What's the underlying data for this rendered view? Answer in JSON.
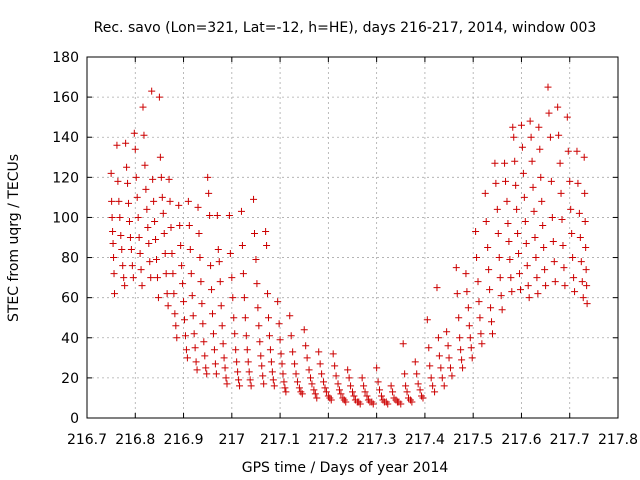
{
  "chart_data": {
    "type": "scatter",
    "title": "Rec. savo (Lon=321, Lat=-12, h=HE), days 216-217, 2014, window 003",
    "xlabel": "GPS time / Days of year 2014",
    "ylabel": "STEC from uqrg / TECUs",
    "xlim": [
      216.7,
      217.8
    ],
    "ylim": [
      0,
      180
    ],
    "xticks": [
      "216.7",
      "216.8",
      "216.9",
      "217",
      "217.1",
      "217.2",
      "217.3",
      "217.4",
      "217.5",
      "217.6",
      "217.7",
      "217.8"
    ],
    "yticks": [
      "0",
      "20",
      "40",
      "60",
      "80",
      "100",
      "120",
      "140",
      "160",
      "180"
    ],
    "grid": true,
    "marker": "+",
    "color": "#cc0000",
    "points": [
      [
        216.75,
        122
      ],
      [
        216.751,
        108
      ],
      [
        216.752,
        100
      ],
      [
        216.753,
        93
      ],
      [
        216.754,
        87
      ],
      [
        216.755,
        80
      ],
      [
        216.756,
        72
      ],
      [
        216.757,
        62
      ],
      [
        216.762,
        136
      ],
      [
        216.764,
        118
      ],
      [
        216.766,
        108
      ],
      [
        216.768,
        100
      ],
      [
        216.77,
        91
      ],
      [
        216.772,
        84
      ],
      [
        216.774,
        76
      ],
      [
        216.776,
        70
      ],
      [
        216.778,
        66
      ],
      [
        216.78,
        137
      ],
      [
        216.782,
        125
      ],
      [
        216.784,
        117
      ],
      [
        216.786,
        107
      ],
      [
        216.788,
        98
      ],
      [
        216.79,
        90
      ],
      [
        216.792,
        84
      ],
      [
        216.794,
        76
      ],
      [
        216.796,
        70
      ],
      [
        216.798,
        142
      ],
      [
        216.8,
        134
      ],
      [
        216.802,
        120
      ],
      [
        216.804,
        110
      ],
      [
        216.806,
        100
      ],
      [
        216.808,
        90
      ],
      [
        216.81,
        82
      ],
      [
        216.812,
        74
      ],
      [
        216.814,
        66
      ],
      [
        216.816,
        155
      ],
      [
        216.818,
        141
      ],
      [
        216.82,
        126
      ],
      [
        216.822,
        114
      ],
      [
        216.824,
        104
      ],
      [
        216.826,
        95
      ],
      [
        216.828,
        87
      ],
      [
        216.83,
        78
      ],
      [
        216.832,
        70
      ],
      [
        216.834,
        163
      ],
      [
        216.836,
        119
      ],
      [
        216.838,
        108
      ],
      [
        216.84,
        98
      ],
      [
        216.842,
        89
      ],
      [
        216.844,
        79
      ],
      [
        216.846,
        70
      ],
      [
        216.848,
        60
      ],
      [
        216.85,
        160
      ],
      [
        216.852,
        130
      ],
      [
        216.854,
        120
      ],
      [
        216.856,
        110
      ],
      [
        216.858,
        102
      ],
      [
        216.86,
        92
      ],
      [
        216.862,
        82
      ],
      [
        216.864,
        72
      ],
      [
        216.866,
        62
      ],
      [
        216.868,
        56
      ],
      [
        216.87,
        119
      ],
      [
        216.872,
        108
      ],
      [
        216.874,
        95
      ],
      [
        216.876,
        82
      ],
      [
        216.878,
        72
      ],
      [
        216.88,
        62
      ],
      [
        216.882,
        52
      ],
      [
        216.884,
        46
      ],
      [
        216.886,
        40
      ],
      [
        216.89,
        106
      ],
      [
        216.892,
        96
      ],
      [
        216.894,
        86
      ],
      [
        216.896,
        76
      ],
      [
        216.898,
        67
      ],
      [
        216.9,
        58
      ],
      [
        216.902,
        49
      ],
      [
        216.904,
        41
      ],
      [
        216.906,
        34
      ],
      [
        216.908,
        30
      ],
      [
        216.91,
        108
      ],
      [
        216.912,
        96
      ],
      [
        216.914,
        84
      ],
      [
        216.916,
        72
      ],
      [
        216.918,
        61
      ],
      [
        216.92,
        51
      ],
      [
        216.922,
        42
      ],
      [
        216.924,
        35
      ],
      [
        216.926,
        28
      ],
      [
        216.928,
        24
      ],
      [
        216.93,
        105
      ],
      [
        216.932,
        92
      ],
      [
        216.934,
        80
      ],
      [
        216.936,
        68
      ],
      [
        216.938,
        57
      ],
      [
        216.94,
        47
      ],
      [
        216.942,
        38
      ],
      [
        216.944,
        31
      ],
      [
        216.946,
        25
      ],
      [
        216.948,
        22
      ],
      [
        216.95,
        120
      ],
      [
        216.952,
        112
      ],
      [
        216.954,
        101
      ],
      [
        216.956,
        76
      ],
      [
        216.958,
        64
      ],
      [
        216.96,
        52
      ],
      [
        216.962,
        42
      ],
      [
        216.964,
        34
      ],
      [
        216.966,
        27
      ],
      [
        216.968,
        22
      ],
      [
        216.97,
        101
      ],
      [
        216.972,
        84
      ],
      [
        216.974,
        78
      ],
      [
        216.976,
        68
      ],
      [
        216.978,
        56
      ],
      [
        216.98,
        46
      ],
      [
        216.982,
        37
      ],
      [
        216.984,
        30
      ],
      [
        216.986,
        25
      ],
      [
        216.988,
        20
      ],
      [
        216.99,
        17
      ],
      [
        216.995,
        101
      ],
      [
        216.997,
        82
      ],
      [
        217.0,
        70
      ],
      [
        217.002,
        60
      ],
      [
        217.004,
        50
      ],
      [
        217.006,
        42
      ],
      [
        217.008,
        34
      ],
      [
        217.01,
        28
      ],
      [
        217.012,
        23
      ],
      [
        217.014,
        19
      ],
      [
        217.016,
        16
      ],
      [
        217.02,
        103
      ],
      [
        217.022,
        86
      ],
      [
        217.024,
        72
      ],
      [
        217.026,
        60
      ],
      [
        217.028,
        50
      ],
      [
        217.03,
        41
      ],
      [
        217.032,
        34
      ],
      [
        217.034,
        28
      ],
      [
        217.036,
        23
      ],
      [
        217.038,
        19
      ],
      [
        217.04,
        16
      ],
      [
        217.045,
        109
      ],
      [
        217.047,
        92
      ],
      [
        217.05,
        79
      ],
      [
        217.052,
        67
      ],
      [
        217.054,
        55
      ],
      [
        217.056,
        46
      ],
      [
        217.058,
        38
      ],
      [
        217.06,
        31
      ],
      [
        217.062,
        26
      ],
      [
        217.064,
        21
      ],
      [
        217.066,
        17
      ],
      [
        217.07,
        93
      ],
      [
        217.072,
        86
      ],
      [
        217.074,
        62
      ],
      [
        217.076,
        50
      ],
      [
        217.078,
        41
      ],
      [
        217.08,
        34
      ],
      [
        217.082,
        28
      ],
      [
        217.084,
        23
      ],
      [
        217.086,
        19
      ],
      [
        217.088,
        16
      ],
      [
        217.095,
        58
      ],
      [
        217.098,
        47
      ],
      [
        217.1,
        39
      ],
      [
        217.102,
        32
      ],
      [
        217.104,
        27
      ],
      [
        217.106,
        22
      ],
      [
        217.108,
        18
      ],
      [
        217.11,
        15
      ],
      [
        217.112,
        13
      ],
      [
        217.12,
        51
      ],
      [
        217.123,
        41
      ],
      [
        217.126,
        33
      ],
      [
        217.13,
        27
      ],
      [
        217.133,
        22
      ],
      [
        217.136,
        18
      ],
      [
        217.14,
        15
      ],
      [
        217.143,
        13
      ],
      [
        217.146,
        12
      ],
      [
        217.15,
        44
      ],
      [
        217.153,
        36
      ],
      [
        217.156,
        30
      ],
      [
        217.16,
        24
      ],
      [
        217.163,
        20
      ],
      [
        217.166,
        17
      ],
      [
        217.17,
        14
      ],
      [
        217.173,
        12
      ],
      [
        217.176,
        10
      ],
      [
        217.18,
        33
      ],
      [
        217.183,
        27
      ],
      [
        217.186,
        22
      ],
      [
        217.19,
        18
      ],
      [
        217.193,
        15
      ],
      [
        217.196,
        13
      ],
      [
        217.2,
        11
      ],
      [
        217.203,
        10
      ],
      [
        217.206,
        9
      ],
      [
        217.21,
        32
      ],
      [
        217.213,
        26
      ],
      [
        217.216,
        21
      ],
      [
        217.22,
        17
      ],
      [
        217.223,
        14
      ],
      [
        217.226,
        12
      ],
      [
        217.23,
        10
      ],
      [
        217.233,
        9
      ],
      [
        217.236,
        8
      ],
      [
        217.24,
        24
      ],
      [
        217.243,
        20
      ],
      [
        217.246,
        16
      ],
      [
        217.25,
        13
      ],
      [
        217.253,
        11
      ],
      [
        217.256,
        9
      ],
      [
        217.26,
        8
      ],
      [
        217.263,
        8
      ],
      [
        217.266,
        7
      ],
      [
        217.27,
        20
      ],
      [
        217.273,
        16
      ],
      [
        217.276,
        13
      ],
      [
        217.28,
        11
      ],
      [
        217.283,
        9
      ],
      [
        217.286,
        8
      ],
      [
        217.29,
        8
      ],
      [
        217.293,
        7
      ],
      [
        217.3,
        25
      ],
      [
        217.303,
        18
      ],
      [
        217.306,
        14
      ],
      [
        217.31,
        11
      ],
      [
        217.313,
        9
      ],
      [
        217.316,
        8
      ],
      [
        217.32,
        8
      ],
      [
        217.323,
        7
      ],
      [
        217.33,
        16
      ],
      [
        217.333,
        13
      ],
      [
        217.336,
        10
      ],
      [
        217.34,
        9
      ],
      [
        217.343,
        8
      ],
      [
        217.346,
        8
      ],
      [
        217.35,
        7
      ],
      [
        217.355,
        37
      ],
      [
        217.358,
        22
      ],
      [
        217.36,
        16
      ],
      [
        217.363,
        13
      ],
      [
        217.366,
        10
      ],
      [
        217.37,
        9
      ],
      [
        217.373,
        8
      ],
      [
        217.38,
        28
      ],
      [
        217.383,
        22
      ],
      [
        217.386,
        17
      ],
      [
        217.39,
        14
      ],
      [
        217.393,
        11
      ],
      [
        217.396,
        10
      ],
      [
        217.405,
        49
      ],
      [
        217.408,
        35
      ],
      [
        217.41,
        26
      ],
      [
        217.413,
        20
      ],
      [
        217.416,
        16
      ],
      [
        217.42,
        13
      ],
      [
        217.425,
        65
      ],
      [
        217.428,
        40
      ],
      [
        217.43,
        31
      ],
      [
        217.433,
        25
      ],
      [
        217.436,
        20
      ],
      [
        217.44,
        16
      ],
      [
        217.445,
        43
      ],
      [
        217.448,
        36
      ],
      [
        217.45,
        30
      ],
      [
        217.453,
        25
      ],
      [
        217.456,
        21
      ],
      [
        217.465,
        75
      ],
      [
        217.467,
        62
      ],
      [
        217.47,
        50
      ],
      [
        217.472,
        40
      ],
      [
        217.474,
        34
      ],
      [
        217.476,
        29
      ],
      [
        217.478,
        25
      ],
      [
        217.485,
        72
      ],
      [
        217.487,
        63
      ],
      [
        217.49,
        55
      ],
      [
        217.492,
        46
      ],
      [
        217.494,
        40
      ],
      [
        217.496,
        35
      ],
      [
        217.498,
        30
      ],
      [
        217.505,
        93
      ],
      [
        217.507,
        80
      ],
      [
        217.51,
        68
      ],
      [
        217.512,
        58
      ],
      [
        217.514,
        50
      ],
      [
        217.516,
        42
      ],
      [
        217.518,
        37
      ],
      [
        217.525,
        112
      ],
      [
        217.527,
        98
      ],
      [
        217.53,
        85
      ],
      [
        217.532,
        74
      ],
      [
        217.534,
        64
      ],
      [
        217.536,
        55
      ],
      [
        217.538,
        48
      ],
      [
        217.54,
        42
      ],
      [
        217.545,
        127
      ],
      [
        217.547,
        117
      ],
      [
        217.55,
        104
      ],
      [
        217.552,
        92
      ],
      [
        217.554,
        80
      ],
      [
        217.556,
        70
      ],
      [
        217.558,
        61
      ],
      [
        217.56,
        54
      ],
      [
        217.565,
        127
      ],
      [
        217.567,
        118
      ],
      [
        217.57,
        108
      ],
      [
        217.572,
        97
      ],
      [
        217.574,
        88
      ],
      [
        217.576,
        79
      ],
      [
        217.578,
        70
      ],
      [
        217.58,
        63
      ],
      [
        217.582,
        145
      ],
      [
        217.584,
        140
      ],
      [
        217.586,
        128
      ],
      [
        217.588,
        116
      ],
      [
        217.59,
        104
      ],
      [
        217.592,
        92
      ],
      [
        217.594,
        82
      ],
      [
        217.596,
        72
      ],
      [
        217.598,
        64
      ],
      [
        217.6,
        146
      ],
      [
        217.602,
        135
      ],
      [
        217.604,
        122
      ],
      [
        217.606,
        110
      ],
      [
        217.608,
        98
      ],
      [
        217.61,
        87
      ],
      [
        217.612,
        76
      ],
      [
        217.614,
        66
      ],
      [
        217.616,
        60
      ],
      [
        217.618,
        148
      ],
      [
        217.62,
        140
      ],
      [
        217.622,
        128
      ],
      [
        217.624,
        115
      ],
      [
        217.626,
        103
      ],
      [
        217.628,
        90
      ],
      [
        217.63,
        80
      ],
      [
        217.632,
        70
      ],
      [
        217.634,
        62
      ],
      [
        217.636,
        145
      ],
      [
        217.638,
        134
      ],
      [
        217.64,
        120
      ],
      [
        217.642,
        108
      ],
      [
        217.644,
        96
      ],
      [
        217.646,
        85
      ],
      [
        217.648,
        74
      ],
      [
        217.65,
        66
      ],
      [
        217.655,
        165
      ],
      [
        217.657,
        152
      ],
      [
        217.66,
        140
      ],
      [
        217.662,
        118
      ],
      [
        217.664,
        100
      ],
      [
        217.666,
        88
      ],
      [
        217.668,
        78
      ],
      [
        217.67,
        68
      ],
      [
        217.675,
        155
      ],
      [
        217.677,
        141
      ],
      [
        217.68,
        127
      ],
      [
        217.682,
        112
      ],
      [
        217.684,
        99
      ],
      [
        217.686,
        86
      ],
      [
        217.688,
        75
      ],
      [
        217.69,
        66
      ],
      [
        217.695,
        150
      ],
      [
        217.697,
        133
      ],
      [
        217.7,
        118
      ],
      [
        217.702,
        104
      ],
      [
        217.704,
        92
      ],
      [
        217.706,
        80
      ],
      [
        217.708,
        70
      ],
      [
        217.71,
        63
      ],
      [
        217.715,
        133
      ],
      [
        217.717,
        117
      ],
      [
        217.72,
        102
      ],
      [
        217.722,
        90
      ],
      [
        217.724,
        78
      ],
      [
        217.726,
        68
      ],
      [
        217.728,
        60
      ],
      [
        217.73,
        130
      ],
      [
        217.731,
        112
      ],
      [
        217.732,
        98
      ],
      [
        217.733,
        85
      ],
      [
        217.734,
        74
      ],
      [
        217.735,
        66
      ],
      [
        217.736,
        57
      ]
    ]
  }
}
